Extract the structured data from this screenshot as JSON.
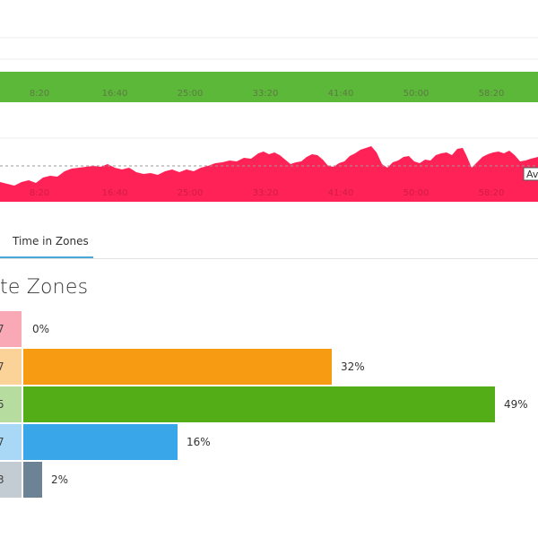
{
  "speed_chart": {
    "band_color": "#5cb838",
    "ticks": [
      "8:20",
      "16:40",
      "25:00",
      "33:20",
      "41:40",
      "50:00",
      "58:20"
    ]
  },
  "heart_chart": {
    "area_color": "#ff2256",
    "ticks": [
      "8:20",
      "16:40",
      "25:00",
      "33:20",
      "41:40",
      "50:00",
      "58:20"
    ],
    "avg_label": "Avg"
  },
  "tabs": {
    "active_label": "Time in Zones"
  },
  "zones": {
    "title": "te Zones",
    "rows": [
      {
        "num": "7",
        "pct_label": "0%",
        "pct": 0,
        "bar_color": "#ff6b8a",
        "label_bg": "#f9a9b6"
      },
      {
        "num": "7",
        "pct_label": "32%",
        "pct": 32,
        "bar_color": "#f79c12",
        "label_bg": "#fbd399"
      },
      {
        "num": "5",
        "pct_label": "49%",
        "pct": 49,
        "bar_color": "#52ad16",
        "label_bg": "#b6dc9f"
      },
      {
        "num": "7",
        "pct_label": "16%",
        "pct": 16,
        "bar_color": "#3aa6ea",
        "label_bg": "#a8d8f6"
      },
      {
        "num": "3",
        "pct_label": "2%",
        "pct": 2,
        "bar_color": "#6c8295",
        "label_bg": "#c3cbd3"
      }
    ]
  }
}
